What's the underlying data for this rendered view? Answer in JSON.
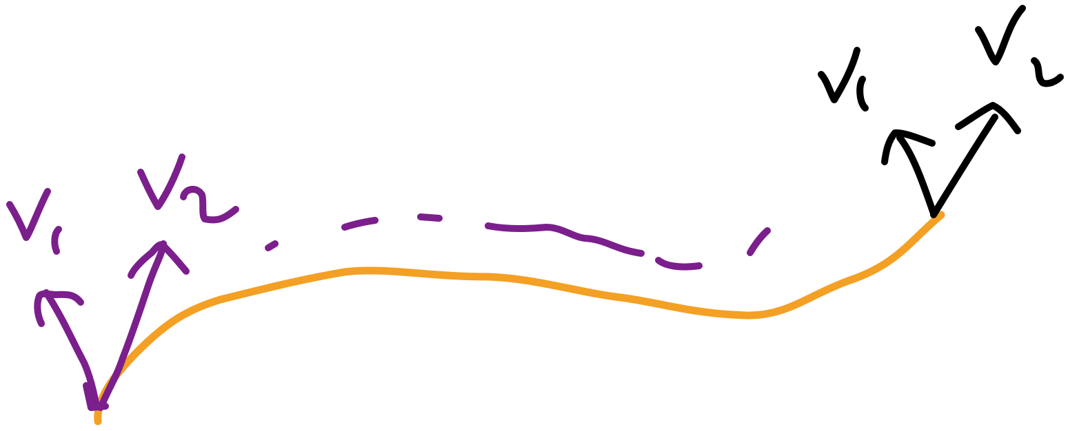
{
  "colors": {
    "background": "#ffffff",
    "path": "#F4A024",
    "parallel_transport": "#7B1F8C",
    "arrows_end": "#000000"
  },
  "labels": {
    "start_v1": "v₁",
    "start_v2": "v₂",
    "end_v1": "v₁",
    "end_v2": "v₂"
  }
}
